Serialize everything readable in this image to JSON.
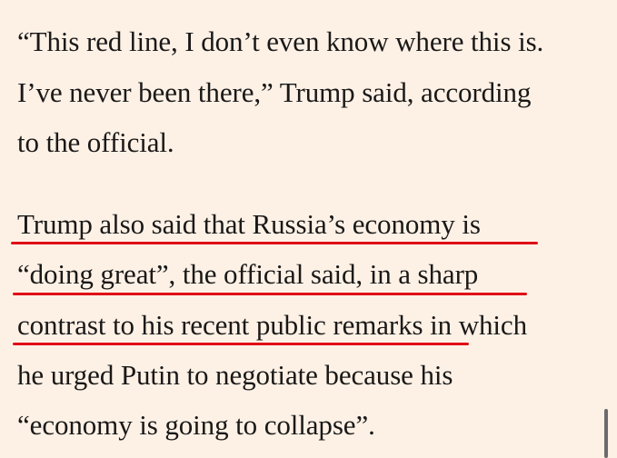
{
  "article": {
    "paragraph1": {
      "line1": "“This red line, I don’t even know where this is.",
      "line2": "I’ve never been there,” Trump said, according",
      "line3": "to the official."
    },
    "paragraph2": {
      "line1": "Trump also said that Russia’s economy is",
      "line2": "“doing great”, the official said, in a sharp",
      "line3": "contrast to his recent public remarks in which",
      "line4": "he urged Putin to negotiate because his",
      "line5": "“economy is going to collapse”."
    }
  },
  "colors": {
    "background": "#fdf1e6",
    "text": "#1a1817",
    "highlight_underline": "#e00d16",
    "scrollbar": "#6b6b6b"
  }
}
